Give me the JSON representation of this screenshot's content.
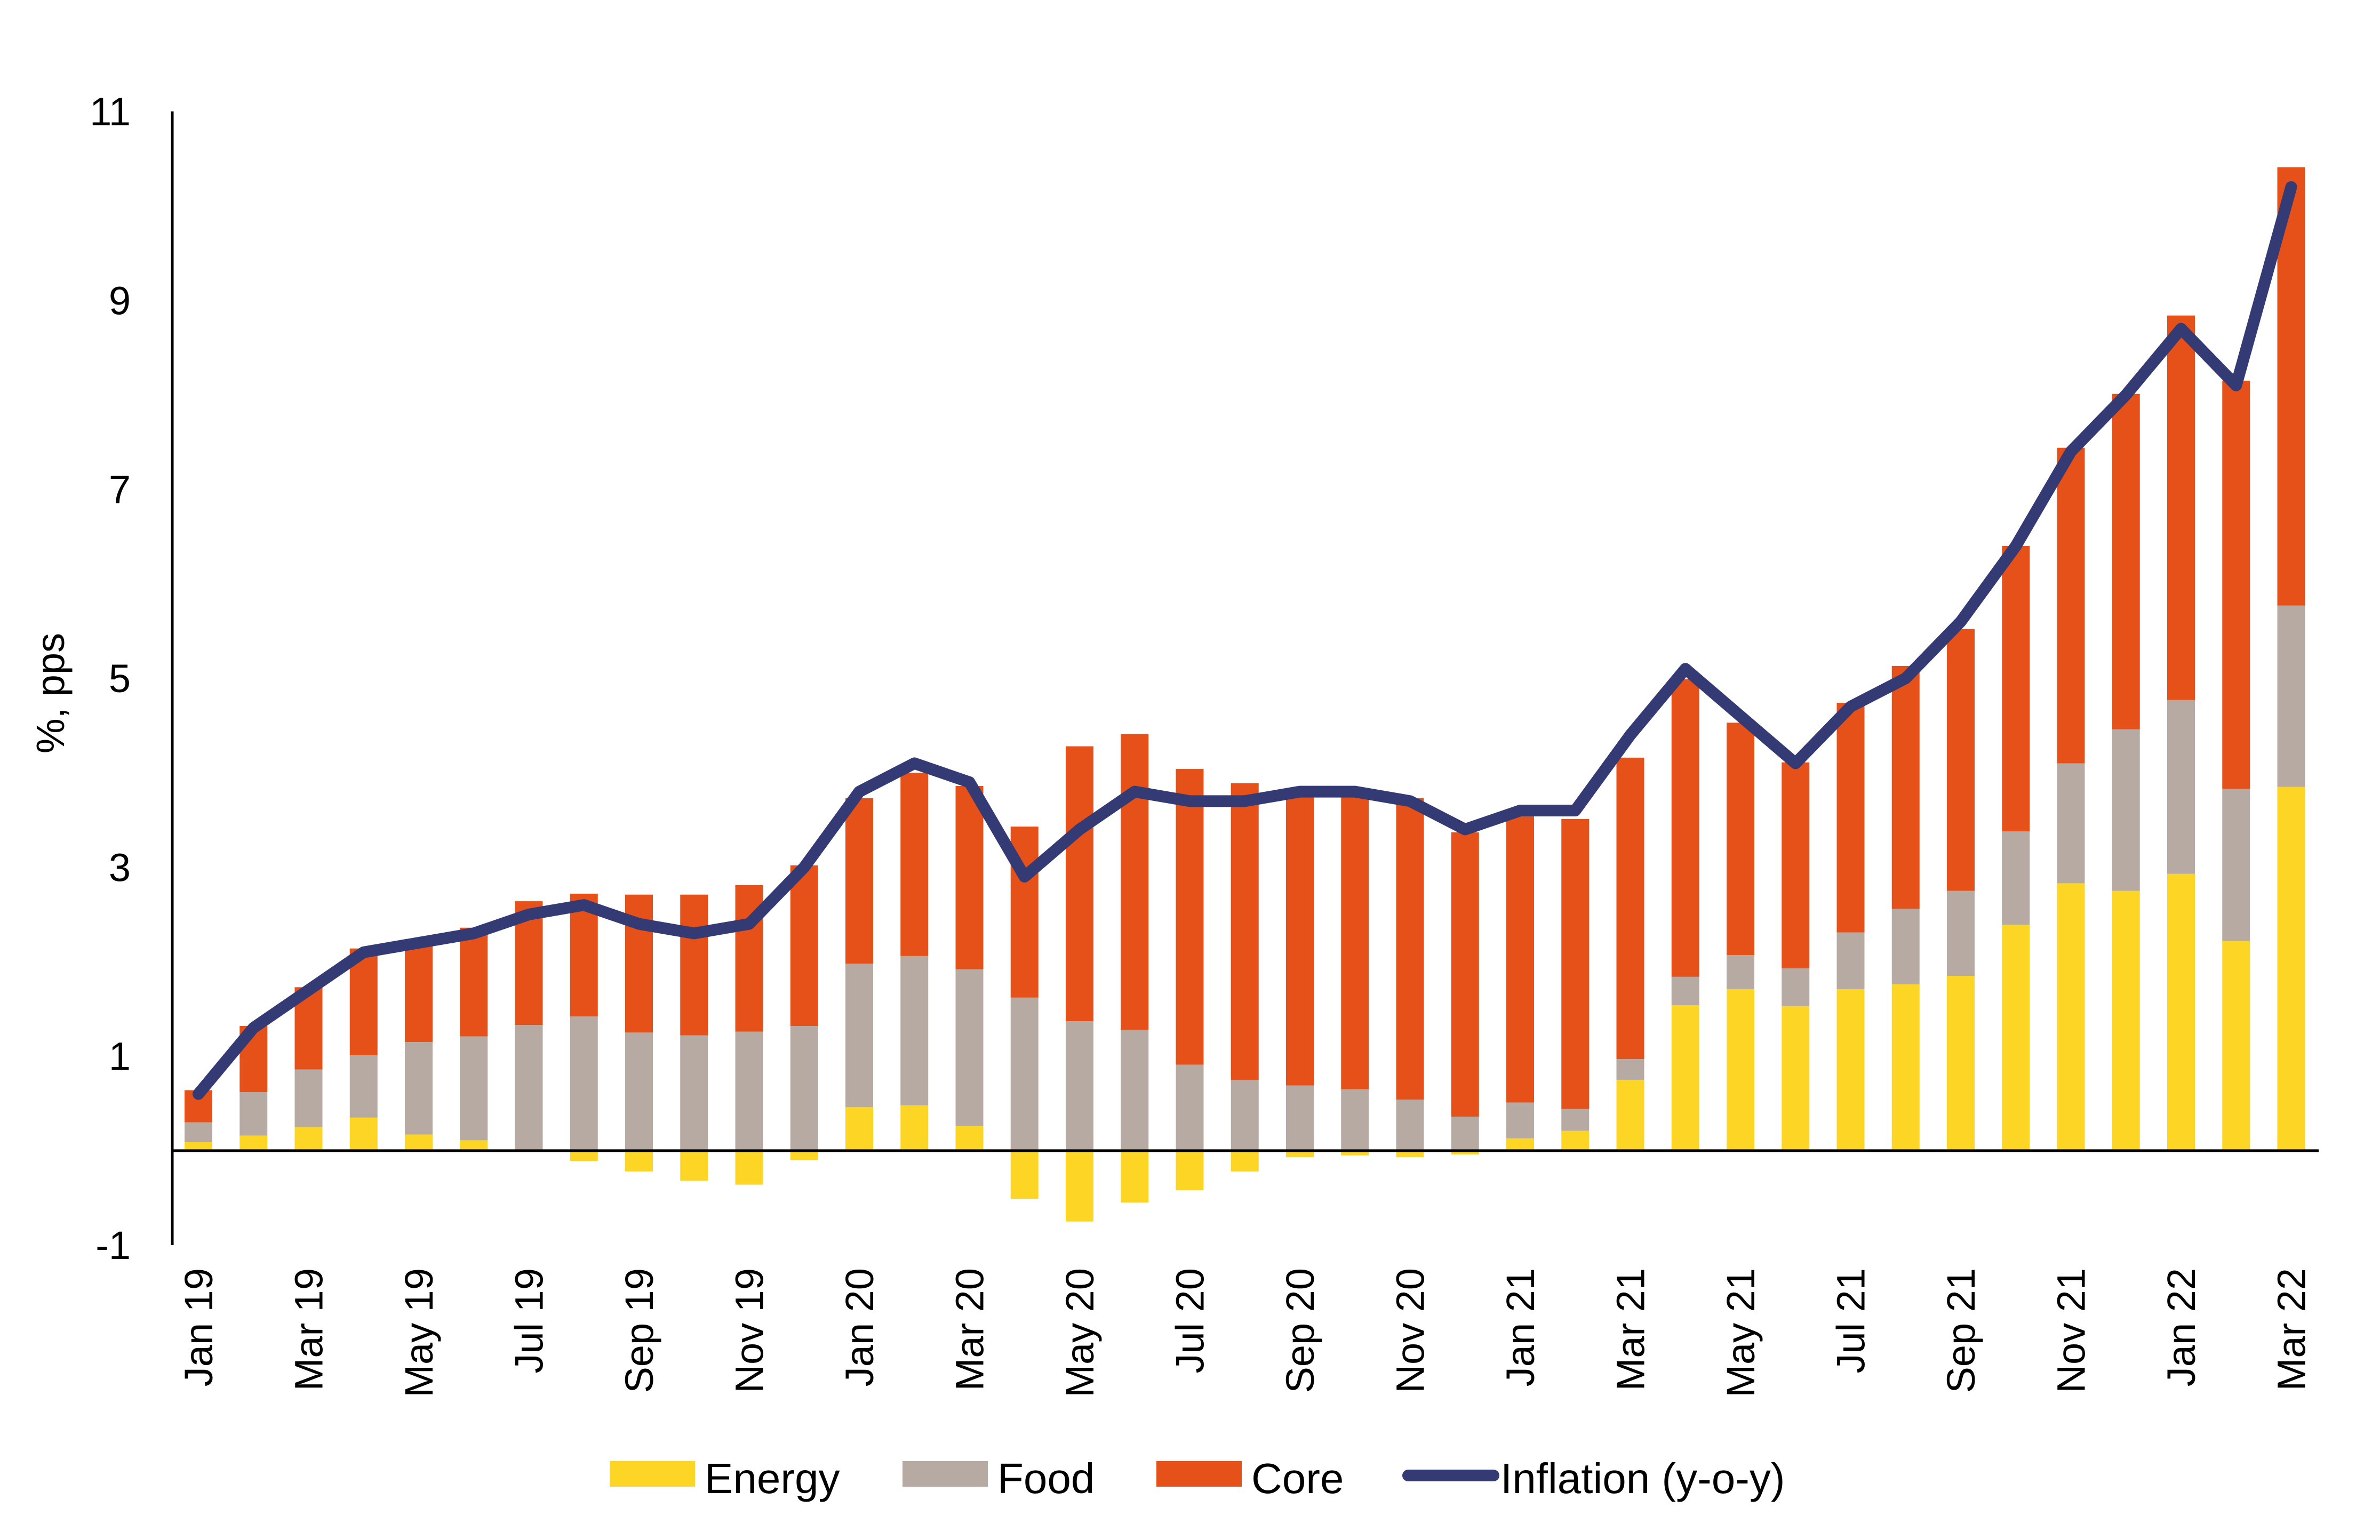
{
  "chart_data": {
    "type": "bar",
    "subtype": "stacked-bar-with-line",
    "title": "",
    "xlabel": "",
    "ylabel": "%, pps",
    "ylim": [
      -1,
      11
    ],
    "yticks": [
      -1,
      1,
      3,
      5,
      7,
      9,
      11
    ],
    "grid": false,
    "legend_position": "bottom",
    "categories": [
      "Jan 19",
      "Feb 19",
      "Mar 19",
      "Apr 19",
      "May 19",
      "Jun 19",
      "Jul 19",
      "Aug 19",
      "Sep 19",
      "Oct 19",
      "Nov 19",
      "Dec 19",
      "Jan 20",
      "Feb 20",
      "Mar 20",
      "Apr 20",
      "May 20",
      "Jun 20",
      "Jul 20",
      "Aug 20",
      "Sep 20",
      "Oct 20",
      "Nov 20",
      "Dec 20",
      "Jan 21",
      "Feb 21",
      "Mar 21",
      "Apr 21",
      "May 21",
      "Jun 21",
      "Jul 21",
      "Aug 21",
      "Sep 21",
      "Oct 21",
      "Nov 21",
      "Dec 21",
      "Jan 22",
      "Feb 22",
      "Mar 22"
    ],
    "xtick_labels": [
      "Jan 19",
      "Mar 19",
      "May 19",
      "Jul 19",
      "Sep 19",
      "Nov 19",
      "Jan 20",
      "Mar 20",
      "May 20",
      "Jul 20",
      "Sep 20",
      "Nov 20",
      "Jan 21",
      "Mar 21",
      "May 21",
      "Jul 21",
      "Sep 21",
      "Nov 21",
      "Jan 22",
      "Mar 22"
    ],
    "series": [
      {
        "name": "Energy",
        "kind": "bar",
        "color": "#fdd625",
        "values": [
          0.09,
          0.16,
          0.25,
          0.35,
          0.17,
          0.11,
          0.0,
          -0.11,
          -0.22,
          -0.32,
          -0.36,
          -0.1,
          0.46,
          0.48,
          0.26,
          -0.51,
          -0.75,
          -0.55,
          -0.42,
          -0.22,
          -0.07,
          -0.05,
          -0.07,
          -0.04,
          0.13,
          0.21,
          0.75,
          1.54,
          1.71,
          1.53,
          1.71,
          1.76,
          1.85,
          2.39,
          2.83,
          2.75,
          2.93,
          2.22,
          3.85
        ]
      },
      {
        "name": "Food",
        "kind": "bar",
        "color": "#b7aaa2",
        "values": [
          0.21,
          0.46,
          0.61,
          0.66,
          0.98,
          1.1,
          1.33,
          1.42,
          1.25,
          1.22,
          1.26,
          1.32,
          1.52,
          1.58,
          1.66,
          1.62,
          1.37,
          1.28,
          0.91,
          0.75,
          0.69,
          0.65,
          0.54,
          0.36,
          0.38,
          0.23,
          0.22,
          0.3,
          0.36,
          0.4,
          0.6,
          0.8,
          0.9,
          0.99,
          1.27,
          1.71,
          1.84,
          1.61,
          1.92
        ]
      },
      {
        "name": "Core",
        "kind": "bar",
        "color": "#e55118",
        "values": [
          0.34,
          0.7,
          0.87,
          1.13,
          1.03,
          1.15,
          1.31,
          1.3,
          1.46,
          1.49,
          1.55,
          1.7,
          1.75,
          1.94,
          1.94,
          1.81,
          2.91,
          3.13,
          3.13,
          3.14,
          3.09,
          3.18,
          3.19,
          3.01,
          3.03,
          3.07,
          3.19,
          3.15,
          2.46,
          2.18,
          2.43,
          2.57,
          2.77,
          3.02,
          3.34,
          3.55,
          4.07,
          4.32,
          4.64
        ]
      },
      {
        "name": "Inflation (y-o-y)",
        "kind": "line",
        "color": "#343a74",
        "values": [
          0.6,
          1.3,
          1.7,
          2.1,
          2.2,
          2.3,
          2.5,
          2.6,
          2.4,
          2.3,
          2.4,
          3.0,
          3.8,
          4.1,
          3.9,
          2.9,
          3.4,
          3.8,
          3.7,
          3.7,
          3.8,
          3.8,
          3.7,
          3.4,
          3.6,
          3.6,
          4.4,
          5.1,
          4.6,
          4.1,
          4.7,
          5.0,
          5.6,
          6.4,
          7.4,
          8.0,
          8.7,
          8.1,
          10.2
        ]
      }
    ]
  },
  "legend": {
    "items": [
      {
        "label": "Energy",
        "kind": "box",
        "color": "#fdd625"
      },
      {
        "label": "Food",
        "kind": "box",
        "color": "#b7aaa2"
      },
      {
        "label": "Core",
        "kind": "box",
        "color": "#e55118"
      },
      {
        "label": "Inflation (y-o-y)",
        "kind": "line",
        "color": "#343a74"
      }
    ]
  },
  "colors": {
    "axis": "#000000",
    "background": "#ffffff"
  }
}
